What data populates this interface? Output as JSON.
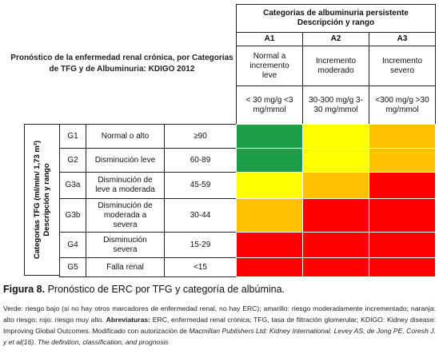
{
  "title": "Pronóstico de la enfermedad renal crónica, por Categorias de TFG y de Albuminuria: KDIGO 2012",
  "albuminuria_header": "Categorias de albuminuria persistente Descripción y rango",
  "columns": [
    {
      "code": "A1",
      "description": "Normal a incremento leve",
      "range": "< 30 mg/g <3 mg/mmol"
    },
    {
      "code": "A2",
      "description": "Incremento moderado",
      "range": "30-300 mg/g 3-30 mg/mmol"
    },
    {
      "code": "A3",
      "description": "Incremento severo",
      "range": "<300 mg/g >30 mg/mmol"
    }
  ],
  "tfg_header": "Categorias TFG (ml/min/ 1,73 m²) Descripción y rango",
  "rows": [
    {
      "code": "G1",
      "description": "Normal o alto",
      "range": "≥90",
      "colors": [
        "#1e9e48",
        "#ffff00",
        "#ffc000"
      ]
    },
    {
      "code": "G2",
      "description": "Disminución leve",
      "range": "60-89",
      "colors": [
        "#1e9e48",
        "#ffff00",
        "#ffc000"
      ]
    },
    {
      "code": "G3a",
      "description": "Disminución de leve a moderada",
      "range": "45-59",
      "colors": [
        "#ffff00",
        "#ffc000",
        "#ff0000"
      ]
    },
    {
      "code": "G3b",
      "description": "Disminución de moderada a severa",
      "range": "30-44",
      "colors": [
        "#ffc000",
        "#ff0000",
        "#ff0000"
      ]
    },
    {
      "code": "G4",
      "description": "Disminución severa",
      "range": "15-29",
      "colors": [
        "#ff0000",
        "#ff0000",
        "#ff0000"
      ]
    },
    {
      "code": "G5",
      "description": "Falla renal",
      "range": "<15",
      "colors": [
        "#ff0000",
        "#ff0000",
        "#ff0000"
      ]
    }
  ],
  "caption": {
    "label": "Figura 8.",
    "text": " Pronóstico de ERC por TFG y categoría de albúmina."
  },
  "footnote": [
    {
      "text": "Verde: riesgo bajo (si no hay otros marcadores de enfermedad renal, no hay ERC); amarillo: riesgo moderadamente incrementado; naranja: alto riesgo; rojo: riesgo muy alto. ",
      "style": "normal"
    },
    {
      "text": "Abreviaturas:",
      "style": "bold"
    },
    {
      "text": " ERC, enfermedad renal crónica; TFG, tasa de filtración glomerular; KDIGO: Kidney disease: Improving Global Outcomes. Modificado con autorización de ",
      "style": "normal"
    },
    {
      "text": "Macmillan Publishers Ltd: Kidney International. Levey AS, de Jong PE, Coresh J. y et al(16). The definition, classification, and prognosis",
      "style": "italic"
    }
  ]
}
